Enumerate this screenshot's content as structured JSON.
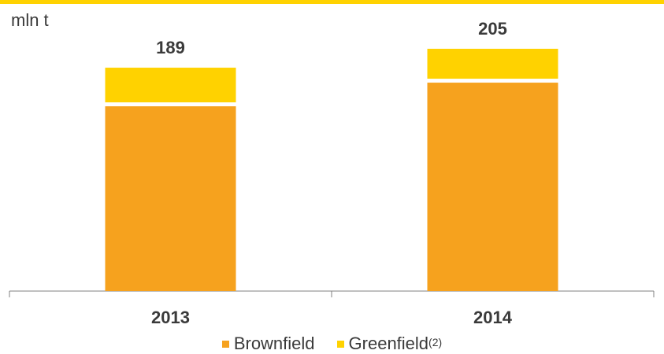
{
  "unit": "mln t",
  "chart_data": {
    "type": "bar",
    "stacked": true,
    "categories": [
      "2013",
      "2014"
    ],
    "totals": [
      "189",
      "205"
    ],
    "series": [
      {
        "name": "Brownfield",
        "values": [
          158,
          178
        ],
        "color": "#f6a21e"
      },
      {
        "name": "Greenfield",
        "values": [
          31,
          27
        ],
        "color": "#ffd200"
      }
    ],
    "ylim": [
      0,
      205
    ],
    "grid": false,
    "legend_position": "bottom"
  },
  "legend": {
    "brownfield_label": "Brownfield",
    "greenfield_label": "Greenfield",
    "greenfield_note": "(2)"
  },
  "colors": {
    "accent": "#ffd200",
    "brownfield": "#f6a21e",
    "greenfield": "#ffd200",
    "axis": "#808080"
  }
}
